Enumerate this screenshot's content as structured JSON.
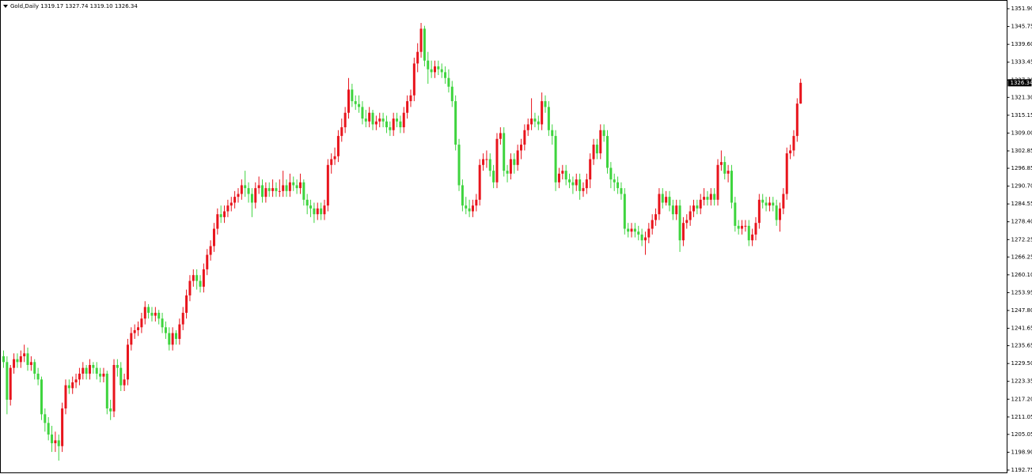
{
  "chart_data": {
    "type": "candlestick",
    "title": "Gold,Daily",
    "header_values": [
      "1319.17",
      "1327.74",
      "1319.10",
      "1326.34"
    ],
    "up_color": "#e8141c",
    "down_color": "#3ed43e",
    "ylim": [
      1191.66,
      1354.63
    ],
    "yticks": [
      {
        "value": 1351.9,
        "label": "1351.90"
      },
      1345.75,
      {
        "value": 1339.6,
        "label": "1339.60"
      },
      1333.45,
      {
        "value": 1327.3,
        "label": "1327.30"
      },
      {
        "value": 1321.3,
        "label": "1321.30"
      },
      1315.15,
      {
        "value": 1309,
        "label": "1309.00"
      },
      1302.85,
      1296.85,
      {
        "value": 1290.7,
        "label": "1290.70"
      },
      1284.55,
      {
        "value": 1278.4,
        "label": "1278.40"
      },
      1272.25,
      1266.25,
      {
        "value": 1260.1,
        "label": "1260.10"
      },
      1253.95,
      {
        "value": 1247.8,
        "label": "1247.80"
      },
      1241.65,
      1235.65,
      {
        "value": 1229.5,
        "label": "1229.50"
      },
      1223.35,
      {
        "value": 1217.2,
        "label": "1217.20"
      },
      1211.05,
      1205.05,
      {
        "value": 1198.9,
        "label": "1198.90"
      },
      1192.75
    ],
    "open": [
      1232,
      1230,
      1217,
      1228,
      1231,
      1230,
      1232,
      1233,
      1229,
      1230,
      1226,
      1224,
      1212,
      1209,
      1205,
      1202,
      1203,
      1201,
      1214,
      1222,
      1221,
      1223,
      1224,
      1226,
      1228,
      1226,
      1229,
      1228,
      1226,
      1225,
      1226,
      1214,
      1213,
      1229,
      1228,
      1222,
      1224,
      1236,
      1240,
      1241,
      1242,
      1245,
      1249,
      1247,
      1246,
      1247,
      1245,
      1242,
      1240,
      1236,
      1240,
      1238,
      1243,
      1247,
      1253,
      1258,
      1260,
      1258,
      1256,
      1262,
      1267,
      1270,
      1276,
      1281,
      1280,
      1282,
      1284,
      1285,
      1287,
      1288,
      1291,
      1290,
      1288,
      1285,
      1290,
      1291,
      1287,
      1290,
      1289,
      1290,
      1289,
      1289,
      1291,
      1289,
      1292,
      1291,
      1290,
      1292,
      1286,
      1284,
      1283,
      1281,
      1283,
      1281,
      1284,
      1298,
      1300,
      1301,
      1308,
      1311,
      1316,
      1324,
      1320,
      1319,
      1318,
      1314,
      1313,
      1316,
      1312,
      1313,
      1314,
      1313,
      1311,
      1310,
      1314,
      1313,
      1311,
      1316,
      1320,
      1322,
      1333,
      1337,
      1345,
      1334,
      1331,
      1330,
      1332,
      1331,
      1330,
      1328,
      1325,
      1320,
      1305,
      1291,
      1284,
      1283,
      1282,
      1284,
      1286,
      1298,
      1300,
      1300,
      1296,
      1292,
      1307,
      1309,
      1296,
      1295,
      1300,
      1298,
      1303,
      1305,
      1310,
      1312,
      1314,
      1313,
      1312,
      1320,
      1318,
      1310,
      1308,
      1292,
      1295,
      1296,
      1293,
      1292,
      1291,
      1293,
      1289,
      1290,
      1293,
      1300,
      1305,
      1302,
      1310,
      1308,
      1297,
      1293,
      1292,
      1290,
      1288,
      1276,
      1275,
      1276,
      1275,
      1274,
      1272,
      1273,
      1276,
      1279,
      1281,
      1288,
      1285,
      1287,
      1284,
      1281,
      1284,
      1272,
      1278,
      1279,
      1282,
      1284,
      1283,
      1286,
      1287,
      1286,
      1288,
      1286,
      1298,
      1299,
      1295,
      1296,
      1285,
      1277,
      1276,
      1277,
      1277,
      1272,
      1274,
      1278,
      1286,
      1285,
      1284,
      1285,
      1284,
      1279,
      1283,
      1288,
      1302,
      1303,
      1308,
      1319.17
    ],
    "high": [
      1234,
      1232,
      1229,
      1233,
      1233,
      1234,
      1236,
      1235,
      1232,
      1231,
      1228,
      1225,
      1214,
      1211,
      1208,
      1206,
      1205,
      1216,
      1224,
      1224,
      1225,
      1226,
      1228,
      1230,
      1229,
      1231,
      1230,
      1230,
      1228,
      1228,
      1227,
      1217,
      1231,
      1231,
      1230,
      1226,
      1238,
      1242,
      1243,
      1244,
      1247,
      1251,
      1250,
      1249,
      1249,
      1248,
      1247,
      1244,
      1242,
      1242,
      1241,
      1245,
      1249,
      1255,
      1260,
      1262,
      1262,
      1260,
      1264,
      1269,
      1272,
      1278,
      1283,
      1284,
      1284,
      1286,
      1287,
      1289,
      1290,
      1293,
      1296,
      1292,
      1290,
      1292,
      1294,
      1293,
      1292,
      1292,
      1293,
      1292,
      1293,
      1296,
      1293,
      1295,
      1294,
      1293,
      1295,
      1293,
      1288,
      1286,
      1285,
      1285,
      1285,
      1286,
      1300,
      1302,
      1304,
      1310,
      1314,
      1318,
      1328,
      1326,
      1322,
      1322,
      1320,
      1317,
      1318,
      1317,
      1315,
      1316,
      1316,
      1315,
      1313,
      1316,
      1316,
      1315,
      1318,
      1322,
      1324,
      1335,
      1340,
      1347,
      1346,
      1337,
      1334,
      1334,
      1334,
      1333,
      1332,
      1331,
      1327,
      1322,
      1307,
      1293,
      1287,
      1286,
      1286,
      1288,
      1300,
      1302,
      1303,
      1302,
      1298,
      1309,
      1311,
      1311,
      1298,
      1302,
      1302,
      1305,
      1307,
      1312,
      1314,
      1321,
      1316,
      1315,
      1323,
      1322,
      1320,
      1312,
      1310,
      1297,
      1298,
      1298,
      1295,
      1294,
      1295,
      1295,
      1292,
      1295,
      1302,
      1307,
      1307,
      1312,
      1312,
      1310,
      1299,
      1295,
      1294,
      1292,
      1290,
      1278,
      1278,
      1278,
      1277,
      1276,
      1275,
      1278,
      1281,
      1283,
      1290,
      1290,
      1289,
      1289,
      1286,
      1286,
      1286,
      1280,
      1281,
      1284,
      1286,
      1286,
      1288,
      1290,
      1289,
      1290,
      1290,
      1300,
      1303,
      1301,
      1298,
      1298,
      1287,
      1279,
      1279,
      1279,
      1279,
      1276,
      1280,
      1288,
      1288,
      1287,
      1287,
      1287,
      1286,
      1285,
      1290,
      1304,
      1305,
      1310,
      1321,
      1327.74
    ],
    "low": [
      1228,
      1212,
      1215,
      1226,
      1228,
      1228,
      1230,
      1227,
      1227,
      1224,
      1222,
      1210,
      1206,
      1203,
      1199,
      1199,
      1196,
      1199,
      1212,
      1219,
      1219,
      1221,
      1222,
      1224,
      1224,
      1224,
      1226,
      1224,
      1223,
      1223,
      1212,
      1210,
      1211,
      1225,
      1220,
      1220,
      1222,
      1234,
      1238,
      1239,
      1240,
      1243,
      1245,
      1244,
      1244,
      1243,
      1240,
      1238,
      1234,
      1234,
      1236,
      1236,
      1241,
      1245,
      1251,
      1256,
      1255,
      1254,
      1254,
      1260,
      1265,
      1268,
      1274,
      1278,
      1278,
      1280,
      1282,
      1283,
      1285,
      1286,
      1287,
      1285,
      1280,
      1283,
      1288,
      1285,
      1285,
      1287,
      1287,
      1287,
      1287,
      1287,
      1287,
      1287,
      1289,
      1288,
      1288,
      1284,
      1281,
      1280,
      1278,
      1279,
      1279,
      1279,
      1282,
      1295,
      1298,
      1299,
      1306,
      1309,
      1314,
      1318,
      1317,
      1316,
      1312,
      1311,
      1311,
      1310,
      1310,
      1311,
      1311,
      1309,
      1308,
      1308,
      1311,
      1309,
      1309,
      1314,
      1318,
      1320,
      1330,
      1335,
      1332,
      1326,
      1328,
      1328,
      1329,
      1328,
      1326,
      1323,
      1318,
      1303,
      1289,
      1282,
      1281,
      1280,
      1280,
      1282,
      1284,
      1296,
      1297,
      1294,
      1290,
      1290,
      1305,
      1294,
      1292,
      1293,
      1295,
      1296,
      1300,
      1303,
      1308,
      1310,
      1311,
      1310,
      1310,
      1316,
      1308,
      1305,
      1289,
      1290,
      1293,
      1291,
      1290,
      1288,
      1289,
      1286,
      1287,
      1288,
      1290,
      1298,
      1300,
      1300,
      1306,
      1295,
      1290,
      1289,
      1288,
      1286,
      1274,
      1273,
      1273,
      1273,
      1272,
      1270,
      1267,
      1271,
      1274,
      1277,
      1279,
      1283,
      1284,
      1282,
      1279,
      1279,
      1268,
      1270,
      1276,
      1277,
      1280,
      1281,
      1281,
      1284,
      1284,
      1284,
      1284,
      1284,
      1296,
      1293,
      1292,
      1283,
      1275,
      1274,
      1274,
      1275,
      1270,
      1270,
      1272,
      1276,
      1283,
      1282,
      1282,
      1282,
      1277,
      1275,
      1281,
      1286,
      1300,
      1301,
      1306,
      1319.1
    ],
    "close": [
      1230,
      1217,
      1228,
      1231,
      1230,
      1232,
      1233,
      1229,
      1230,
      1226,
      1224,
      1212,
      1209,
      1205,
      1202,
      1203,
      1201,
      1214,
      1222,
      1221,
      1223,
      1224,
      1226,
      1228,
      1226,
      1229,
      1228,
      1226,
      1225,
      1226,
      1214,
      1213,
      1229,
      1228,
      1222,
      1224,
      1236,
      1240,
      1241,
      1242,
      1245,
      1249,
      1247,
      1246,
      1247,
      1245,
      1242,
      1240,
      1236,
      1240,
      1238,
      1243,
      1247,
      1253,
      1258,
      1260,
      1258,
      1256,
      1262,
      1267,
      1270,
      1276,
      1281,
      1280,
      1282,
      1284,
      1285,
      1287,
      1288,
      1291,
      1290,
      1288,
      1285,
      1290,
      1291,
      1287,
      1290,
      1289,
      1290,
      1289,
      1289,
      1291,
      1289,
      1292,
      1291,
      1290,
      1292,
      1286,
      1284,
      1283,
      1281,
      1283,
      1281,
      1284,
      1298,
      1300,
      1301,
      1308,
      1311,
      1316,
      1324,
      1320,
      1319,
      1318,
      1314,
      1313,
      1316,
      1312,
      1313,
      1314,
      1313,
      1311,
      1310,
      1314,
      1313,
      1311,
      1316,
      1320,
      1322,
      1333,
      1337,
      1345,
      1334,
      1331,
      1330,
      1332,
      1331,
      1330,
      1328,
      1325,
      1320,
      1305,
      1291,
      1284,
      1283,
      1282,
      1284,
      1286,
      1298,
      1300,
      1300,
      1296,
      1292,
      1307,
      1309,
      1296,
      1295,
      1300,
      1298,
      1303,
      1305,
      1310,
      1312,
      1314,
      1313,
      1312,
      1320,
      1318,
      1310,
      1308,
      1292,
      1295,
      1296,
      1293,
      1292,
      1291,
      1293,
      1289,
      1290,
      1293,
      1300,
      1305,
      1302,
      1310,
      1308,
      1297,
      1293,
      1292,
      1290,
      1288,
      1276,
      1275,
      1276,
      1275,
      1274,
      1272,
      1273,
      1276,
      1279,
      1281,
      1288,
      1285,
      1287,
      1284,
      1281,
      1284,
      1272,
      1278,
      1279,
      1282,
      1284,
      1283,
      1286,
      1287,
      1286,
      1288,
      1286,
      1298,
      1299,
      1295,
      1296,
      1285,
      1277,
      1276,
      1277,
      1277,
      1272,
      1274,
      1278,
      1286,
      1285,
      1284,
      1285,
      1284,
      1279,
      1283,
      1288,
      1302,
      1303,
      1308,
      1319.17,
      1326.34
    ]
  }
}
